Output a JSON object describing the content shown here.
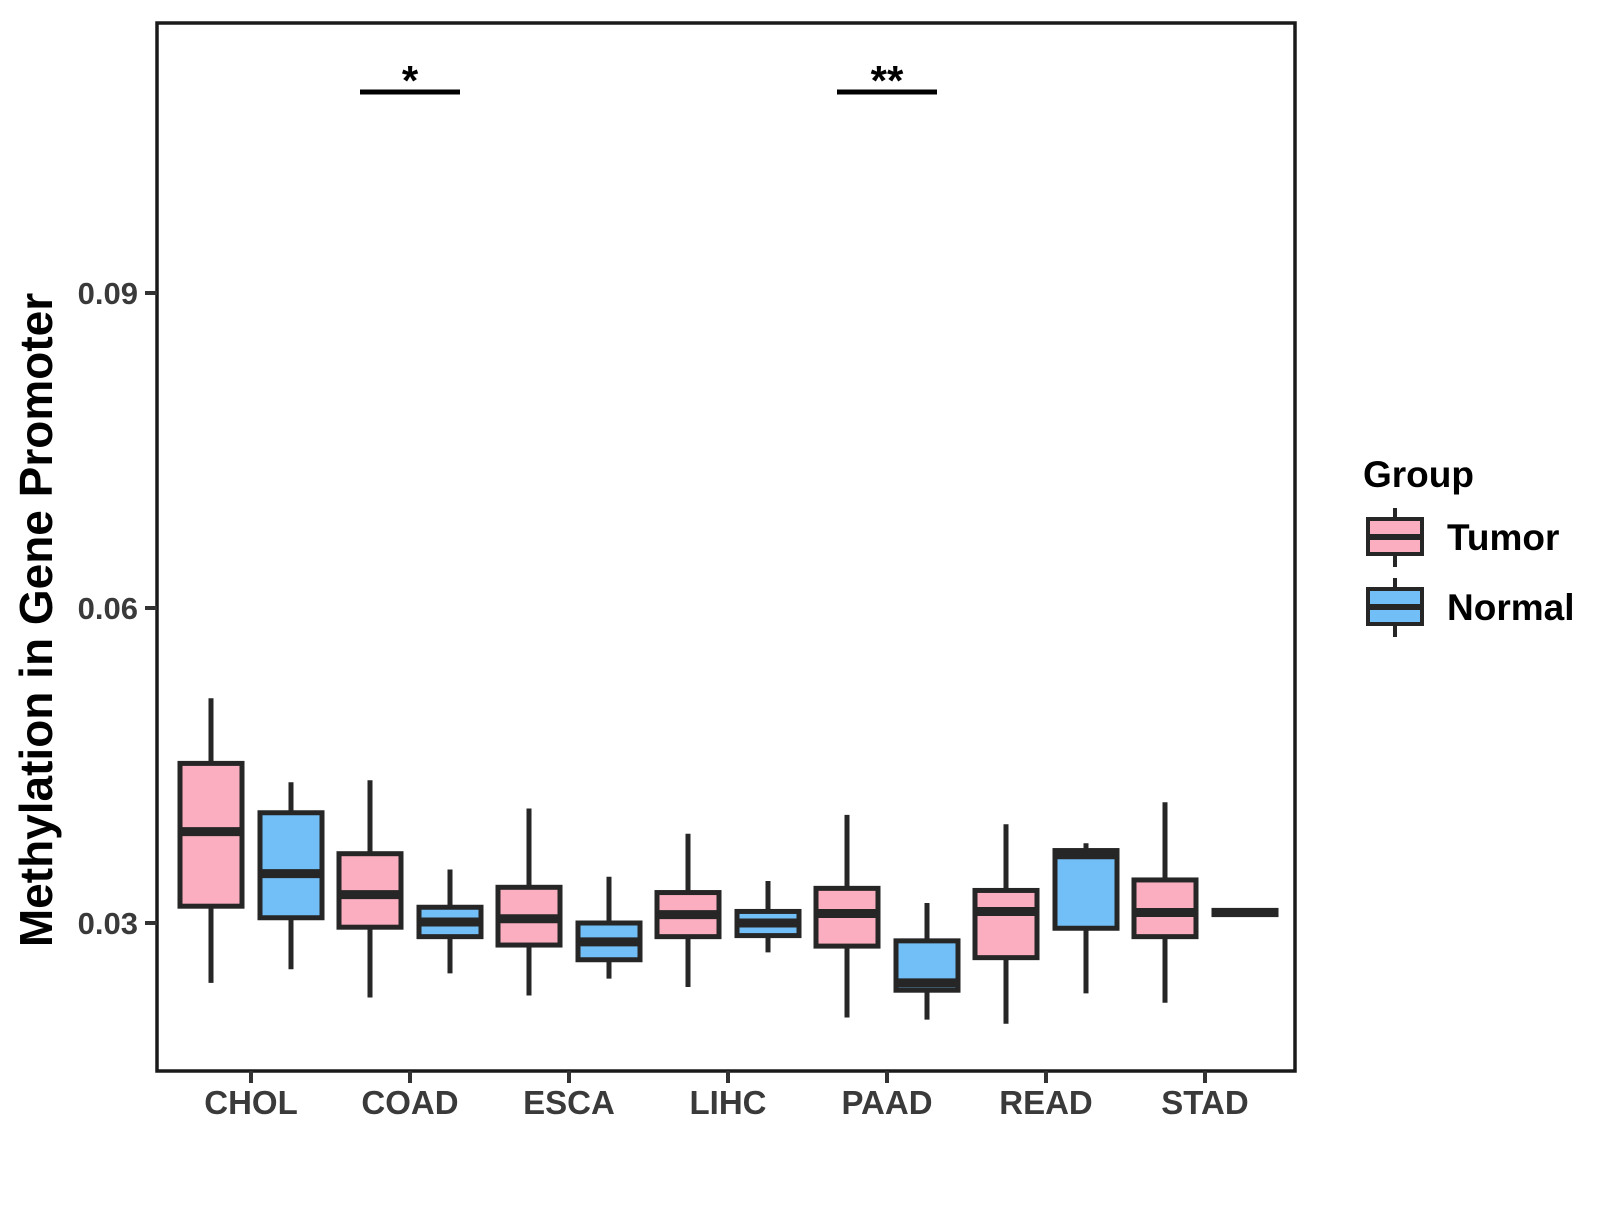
{
  "figure": {
    "background": "#ffffff",
    "panel_border_color": "#1a1a1a",
    "box_stroke_color": "#262626",
    "axis_text_color": "#3a3a3a"
  },
  "chart_data": {
    "type": "boxplot",
    "title": "",
    "xlabel": "",
    "ylabel": "Methylation in Gene Promoter",
    "grid": false,
    "panel_border": true,
    "categories": [
      "CHOL",
      "COAD",
      "ESCA",
      "LIHC",
      "PAAD",
      "READ",
      "STAD"
    ],
    "y_ticks": [
      0.03,
      0.06,
      0.09
    ],
    "y_tick_labels": [
      "0.03",
      "0.06",
      "0.09"
    ],
    "ylim": [
      0.016,
      0.116
    ],
    "legend": {
      "title": "Group",
      "position": "right"
    },
    "series": [
      {
        "name": "Tumor",
        "color": "#FAAEC0",
        "boxes": [
          {
            "category": "CHOL",
            "whisker_low": 0.0243,
            "q1": 0.0316,
            "median": 0.0387,
            "q3": 0.0452,
            "whisker_high": 0.0514
          },
          {
            "category": "COAD",
            "whisker_low": 0.0229,
            "q1": 0.0296,
            "median": 0.0327,
            "q3": 0.0366,
            "whisker_high": 0.0436
          },
          {
            "category": "ESCA",
            "whisker_low": 0.0231,
            "q1": 0.0279,
            "median": 0.0304,
            "q3": 0.0334,
            "whisker_high": 0.0409
          },
          {
            "category": "LIHC",
            "whisker_low": 0.0239,
            "q1": 0.0287,
            "median": 0.0308,
            "q3": 0.0329,
            "whisker_high": 0.0385
          },
          {
            "category": "PAAD",
            "whisker_low": 0.021,
            "q1": 0.0278,
            "median": 0.0309,
            "q3": 0.0333,
            "whisker_high": 0.0403
          },
          {
            "category": "READ",
            "whisker_low": 0.0204,
            "q1": 0.0267,
            "median": 0.0311,
            "q3": 0.0331,
            "whisker_high": 0.0394
          },
          {
            "category": "STAD",
            "whisker_low": 0.0224,
            "q1": 0.0287,
            "median": 0.031,
            "q3": 0.0341,
            "whisker_high": 0.0415
          }
        ]
      },
      {
        "name": "Normal",
        "color": "#72BEF6",
        "boxes": [
          {
            "category": "CHOL",
            "whisker_low": 0.0256,
            "q1": 0.0305,
            "median": 0.0347,
            "q3": 0.0405,
            "whisker_high": 0.0434
          },
          {
            "category": "COAD",
            "whisker_low": 0.0252,
            "q1": 0.0287,
            "median": 0.0301,
            "q3": 0.0315,
            "whisker_high": 0.0351
          },
          {
            "category": "ESCA",
            "whisker_low": 0.0247,
            "q1": 0.0265,
            "median": 0.0282,
            "q3": 0.03,
            "whisker_high": 0.0344
          },
          {
            "category": "LIHC",
            "whisker_low": 0.0272,
            "q1": 0.0288,
            "median": 0.03,
            "q3": 0.0311,
            "whisker_high": 0.034
          },
          {
            "category": "PAAD",
            "whisker_low": 0.0208,
            "q1": 0.0236,
            "median": 0.0243,
            "q3": 0.0283,
            "whisker_high": 0.0319
          },
          {
            "category": "READ",
            "whisker_low": 0.0233,
            "q1": 0.0295,
            "median": 0.0365,
            "q3": 0.0369,
            "whisker_high": 0.0376
          },
          {
            "category": "STAD",
            "whisker_low": 0.0306,
            "q1": 0.0308,
            "median": 0.031,
            "q3": 0.0312,
            "whisker_high": 0.0314
          }
        ]
      }
    ],
    "annotations": [
      {
        "category": "COAD",
        "label": "*"
      },
      {
        "category": "PAAD",
        "label": "**"
      }
    ]
  }
}
